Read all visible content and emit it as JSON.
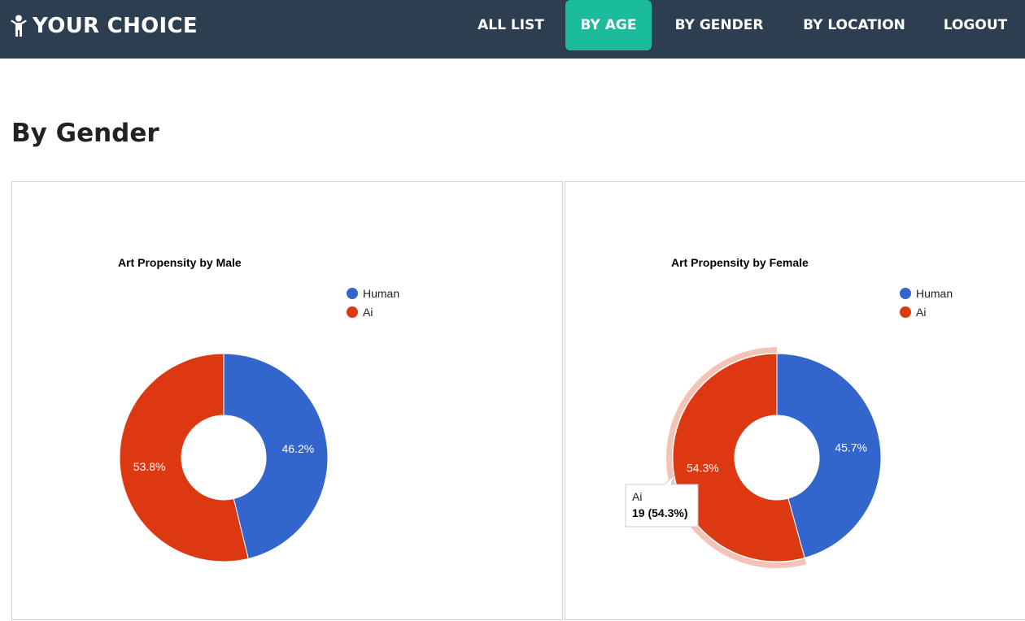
{
  "brand": {
    "label": "YOUR CHOICE",
    "icon": "person-icon"
  },
  "nav": {
    "items": [
      {
        "label": "ALL LIST"
      },
      {
        "label": "BY AGE"
      },
      {
        "label": "BY GENDER"
      },
      {
        "label": "BY LOCATION"
      },
      {
        "label": "LOGOUT"
      }
    ],
    "active_index": 1
  },
  "colors": {
    "navbar": "#2c3e50",
    "active_tab": "#1abc9c",
    "human": "#3366cc",
    "ai": "#dc3912"
  },
  "page": {
    "title": "By Gender"
  },
  "chart_data": [
    {
      "type": "pie",
      "donut": true,
      "title": "Art Propensity by Male",
      "legend_position": "top-right",
      "labels": [
        "Human",
        "Ai"
      ],
      "percentages": [
        46.2,
        53.8
      ],
      "slice_labels": [
        "46.2%",
        "53.8%"
      ],
      "colors": [
        "#3366cc",
        "#dc3912"
      ]
    },
    {
      "type": "pie",
      "donut": true,
      "title": "Art Propensity by Female",
      "legend_position": "top-right",
      "labels": [
        "Human",
        "Ai"
      ],
      "percentages": [
        45.7,
        54.3
      ],
      "slice_labels": [
        "45.7%",
        "54.3%"
      ],
      "colors": [
        "#3366cc",
        "#dc3912"
      ],
      "highlighted_index": 1,
      "tooltip": {
        "label": "Ai",
        "value": "19 (54.3%)"
      }
    }
  ]
}
